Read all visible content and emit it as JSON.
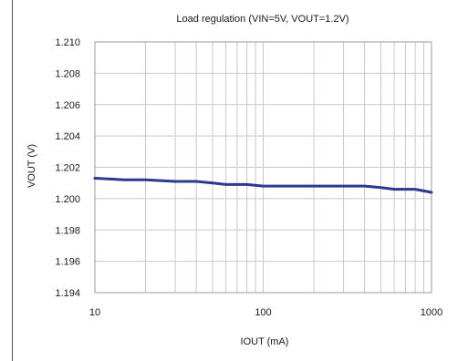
{
  "chart_data": {
    "type": "line",
    "title": "Load regulation (VIN=5V, VOUT=1.2V)",
    "xlabel": "IOUT (mA)",
    "ylabel": "VOUT (V)",
    "x_scale": "log",
    "xlim": [
      10,
      1000
    ],
    "ylim": [
      1.194,
      1.21
    ],
    "x_ticks": [
      {
        "value": 10,
        "label": "10"
      },
      {
        "value": 100,
        "label": "100"
      },
      {
        "value": 1000,
        "label": "1000"
      }
    ],
    "y_ticks": [
      {
        "value": 1.194,
        "label": "1.194"
      },
      {
        "value": 1.196,
        "label": "1.196"
      },
      {
        "value": 1.198,
        "label": "1.198"
      },
      {
        "value": 1.2,
        "label": "1.200"
      },
      {
        "value": 1.202,
        "label": "1.202"
      },
      {
        "value": 1.204,
        "label": "1.204"
      },
      {
        "value": 1.206,
        "label": "1.206"
      },
      {
        "value": 1.208,
        "label": "1.208"
      },
      {
        "value": 1.21,
        "label": "1.210"
      }
    ],
    "grid": true,
    "series": [
      {
        "color": "#2b3a8a",
        "x": [
          10,
          15,
          20,
          30,
          40,
          50,
          60,
          80,
          100,
          150,
          200,
          300,
          400,
          500,
          600,
          800,
          1000
        ],
        "y": [
          1.2013,
          1.2012,
          1.2012,
          1.2011,
          1.2011,
          1.201,
          1.2009,
          1.2009,
          1.2008,
          1.2008,
          1.2008,
          1.2008,
          1.2008,
          1.2007,
          1.2006,
          1.2006,
          1.2004
        ]
      }
    ]
  }
}
